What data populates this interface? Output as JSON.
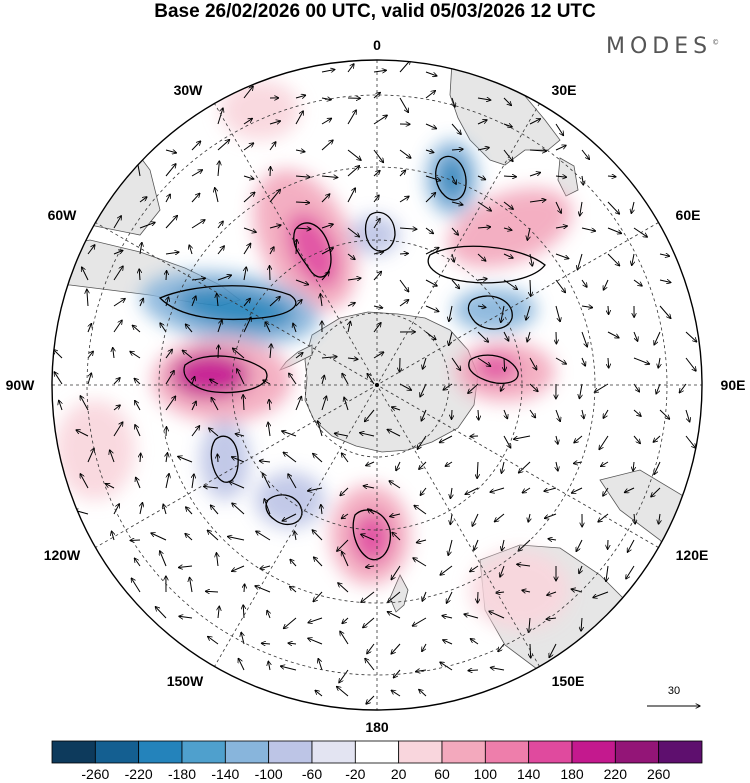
{
  "title": "Base 26/02/2026 00 UTC, valid 05/03/2026 12 UTC",
  "logo": "MODES",
  "logo_mark": "©",
  "longitude_labels": [
    {
      "id": "lon-0",
      "text": "0"
    },
    {
      "id": "lon-30e",
      "text": "30E"
    },
    {
      "id": "lon-60e",
      "text": "60E"
    },
    {
      "id": "lon-90e",
      "text": "90E"
    },
    {
      "id": "lon-120e",
      "text": "120E"
    },
    {
      "id": "lon-150e",
      "text": "150E"
    },
    {
      "id": "lon-180",
      "text": "180"
    },
    {
      "id": "lon-150w",
      "text": "150W"
    },
    {
      "id": "lon-120w",
      "text": "120W"
    },
    {
      "id": "lon-90w",
      "text": "90W"
    },
    {
      "id": "lon-60w",
      "text": "60W"
    },
    {
      "id": "lon-30w",
      "text": "30W"
    }
  ],
  "reference_vector": {
    "value": "30"
  },
  "colorbar": {
    "ticks": [
      "-260",
      "-220",
      "-180",
      "-140",
      "-100",
      "-60",
      "-20",
      "20",
      "60",
      "100",
      "140",
      "180",
      "220",
      "260"
    ],
    "colors": [
      "#0d3a5c",
      "#145f91",
      "#2483bb",
      "#4fa0cd",
      "#88b5dc",
      "#bdc5e6",
      "#e3e4f2",
      "#ffffff",
      "#f9d6dd",
      "#f3a9bd",
      "#ee7eab",
      "#e04a9e",
      "#c4198e",
      "#931577",
      "#5e0f6e"
    ]
  },
  "colors": {
    "land": "#e6e6e6",
    "coast": "#555555",
    "grid": "#333333"
  }
}
